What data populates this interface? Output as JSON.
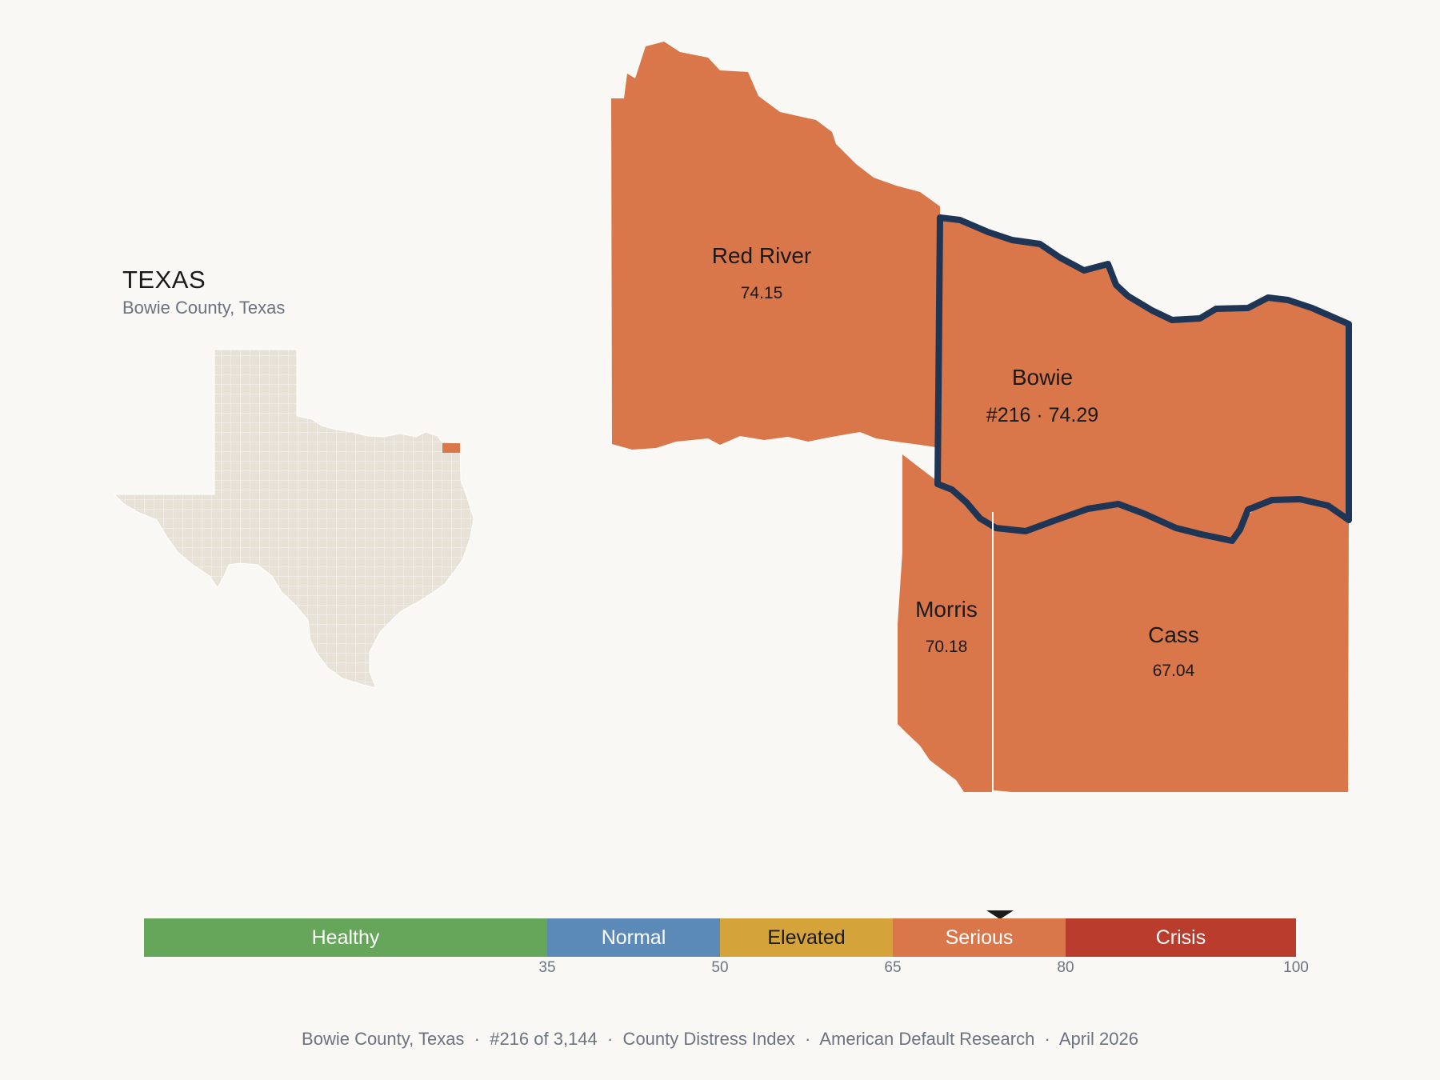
{
  "state": {
    "title": "TEXAS",
    "subtitle": "Bowie County, Texas"
  },
  "colors": {
    "serious": "#d9764a",
    "state_fill": "#e7e1d6",
    "highlight_outline": "#1f3556",
    "background": "#faf8f4"
  },
  "counties": [
    {
      "name": "Red River",
      "value": "74.15",
      "category": "Serious"
    },
    {
      "name": "Bowie",
      "value": "#216 · 74.29",
      "category": "Serious",
      "highlighted": true
    },
    {
      "name": "Morris",
      "value": "70.18",
      "category": "Serious"
    },
    {
      "name": "Cass",
      "value": "67.04",
      "category": "Serious"
    }
  ],
  "scale": {
    "segments": [
      {
        "label": "Healthy",
        "from": 0,
        "to": 35,
        "color": "#66a65a",
        "text_color": "#ffffff"
      },
      {
        "label": "Normal",
        "from": 35,
        "to": 50,
        "color": "#5b8ab8",
        "text_color": "#ffffff"
      },
      {
        "label": "Elevated",
        "from": 50,
        "to": 65,
        "color": "#d4a33a",
        "text_color": "#1a1a1a"
      },
      {
        "label": "Serious",
        "from": 65,
        "to": 80,
        "color": "#d9764a",
        "text_color": "#ffffff"
      },
      {
        "label": "Crisis",
        "from": 80,
        "to": 100,
        "color": "#b93c2c",
        "text_color": "#ffffff"
      }
    ],
    "ticks": [
      "35",
      "50",
      "65",
      "80",
      "100"
    ],
    "marker_value": 74.29
  },
  "footer": {
    "text": "Bowie County, Texas  ·  #216 of 3,144  ·  County Distress Index  ·  American Default Research  ·  April 2026"
  }
}
